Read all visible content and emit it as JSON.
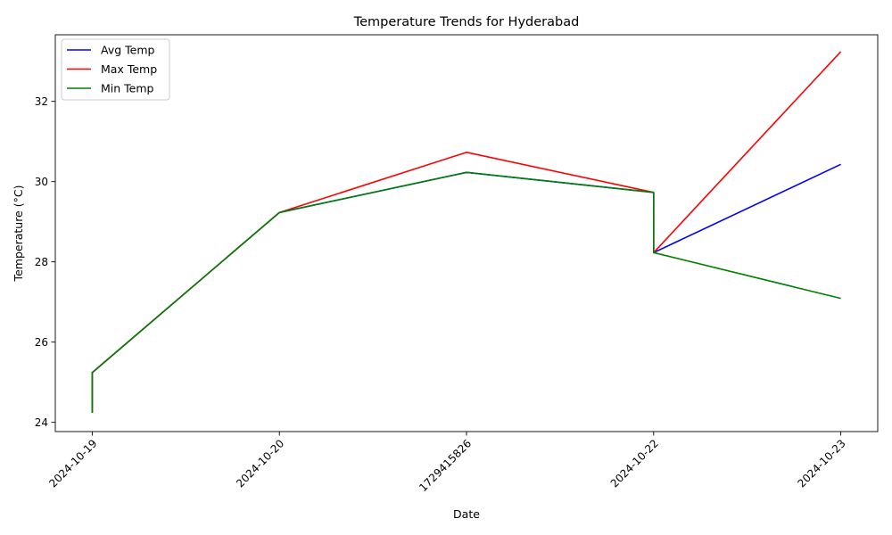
{
  "chart_data": {
    "type": "line",
    "title": "Temperature Trends for Hyderabad",
    "xlabel": "Date",
    "ylabel": "Temperature (°C)",
    "categories": [
      "2024-10-19",
      "2024-10-20",
      "1729415826",
      "2024-10-22",
      "2024-10-23"
    ],
    "ylim": [
      23.77,
      33.66
    ],
    "yticks": [
      24,
      26,
      28,
      30,
      32
    ],
    "grid": false,
    "legend_position": "top-left",
    "series": [
      {
        "name": "Avg Temp",
        "color": "#0000ff",
        "points": [
          [
            0,
            24.24
          ],
          [
            0,
            25.24
          ],
          [
            1,
            29.23
          ],
          [
            2,
            30.23
          ],
          [
            3,
            29.73
          ],
          [
            3,
            28.23
          ],
          [
            4,
            30.43
          ]
        ]
      },
      {
        "name": "Max Temp",
        "color": "#ff0000",
        "points": [
          [
            0,
            24.24
          ],
          [
            0,
            25.24
          ],
          [
            1,
            29.23
          ],
          [
            2,
            30.73
          ],
          [
            3,
            29.73
          ],
          [
            3,
            28.23
          ],
          [
            4,
            33.24
          ]
        ]
      },
      {
        "name": "Min Temp",
        "color": "#008000",
        "points": [
          [
            0,
            24.24
          ],
          [
            0,
            25.24
          ],
          [
            1,
            29.23
          ],
          [
            2,
            30.23
          ],
          [
            3,
            29.73
          ],
          [
            3,
            28.23
          ],
          [
            4,
            27.09
          ]
        ]
      }
    ]
  }
}
